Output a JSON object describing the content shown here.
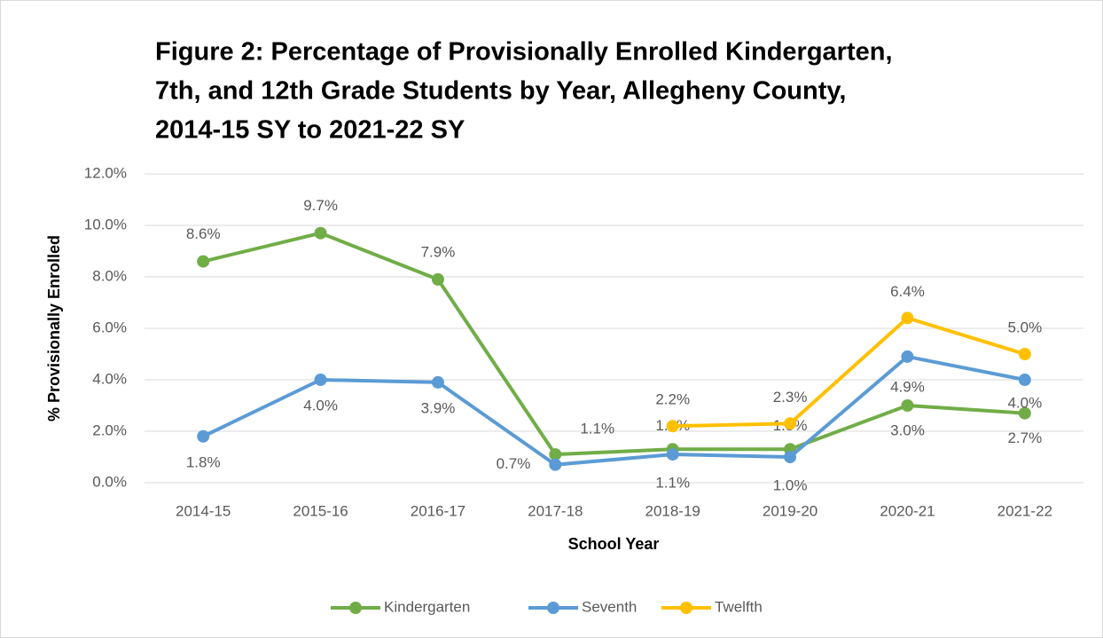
{
  "chart_data": {
    "type": "line",
    "title": [
      "Figure 2: Percentage of Provisionally Enrolled Kindergarten,",
      "7th, and 12th Grade Students by Year, Allegheny County,",
      "2014-15 SY to 2021-22 SY"
    ],
    "x_label": "School Year",
    "y_label": "% Provisionally Enrolled",
    "categories": [
      "2014-15",
      "2015-16",
      "2016-17",
      "2017-18",
      "2018-19",
      "2019-20",
      "2020-21",
      "2021-22"
    ],
    "series": [
      {
        "name": "Kindergarten",
        "color": "#70ad47",
        "values": [
          8.6,
          9.7,
          7.9,
          1.1,
          1.3,
          1.3,
          3.0,
          2.7
        ],
        "value_labels": [
          "8.6%",
          "9.7%",
          "7.9%",
          "1.1%",
          "1.3%",
          "1.3%",
          "3.0%",
          "2.7%"
        ]
      },
      {
        "name": "Seventh",
        "color": "#5b9bd5",
        "values": [
          1.8,
          4.0,
          3.9,
          0.7,
          1.1,
          1.0,
          4.9,
          4.0
        ],
        "value_labels": [
          "1.8%",
          "4.0%",
          "3.9%",
          "0.7%",
          "1.1%",
          "1.0%",
          "4.9%",
          "4.0%"
        ]
      },
      {
        "name": "Twelfth",
        "color": "#ffc000",
        "values": [
          null,
          null,
          null,
          null,
          2.2,
          2.3,
          6.4,
          5.0
        ],
        "value_labels": [
          null,
          null,
          null,
          null,
          "2.2%",
          "2.3%",
          "6.4%",
          "5.0%"
        ]
      }
    ],
    "ylim": [
      0,
      12
    ],
    "yticks": [
      {
        "value": 0,
        "label": "0.0%"
      },
      {
        "value": 2,
        "label": "2.0%"
      },
      {
        "value": 4,
        "label": "4.0%"
      },
      {
        "value": 6,
        "label": "6.0%"
      },
      {
        "value": 8,
        "label": "8.0%"
      },
      {
        "value": 10,
        "label": "10.0%"
      },
      {
        "value": 12,
        "label": "12.0%"
      }
    ],
    "grid": true,
    "legend": "bottom"
  }
}
